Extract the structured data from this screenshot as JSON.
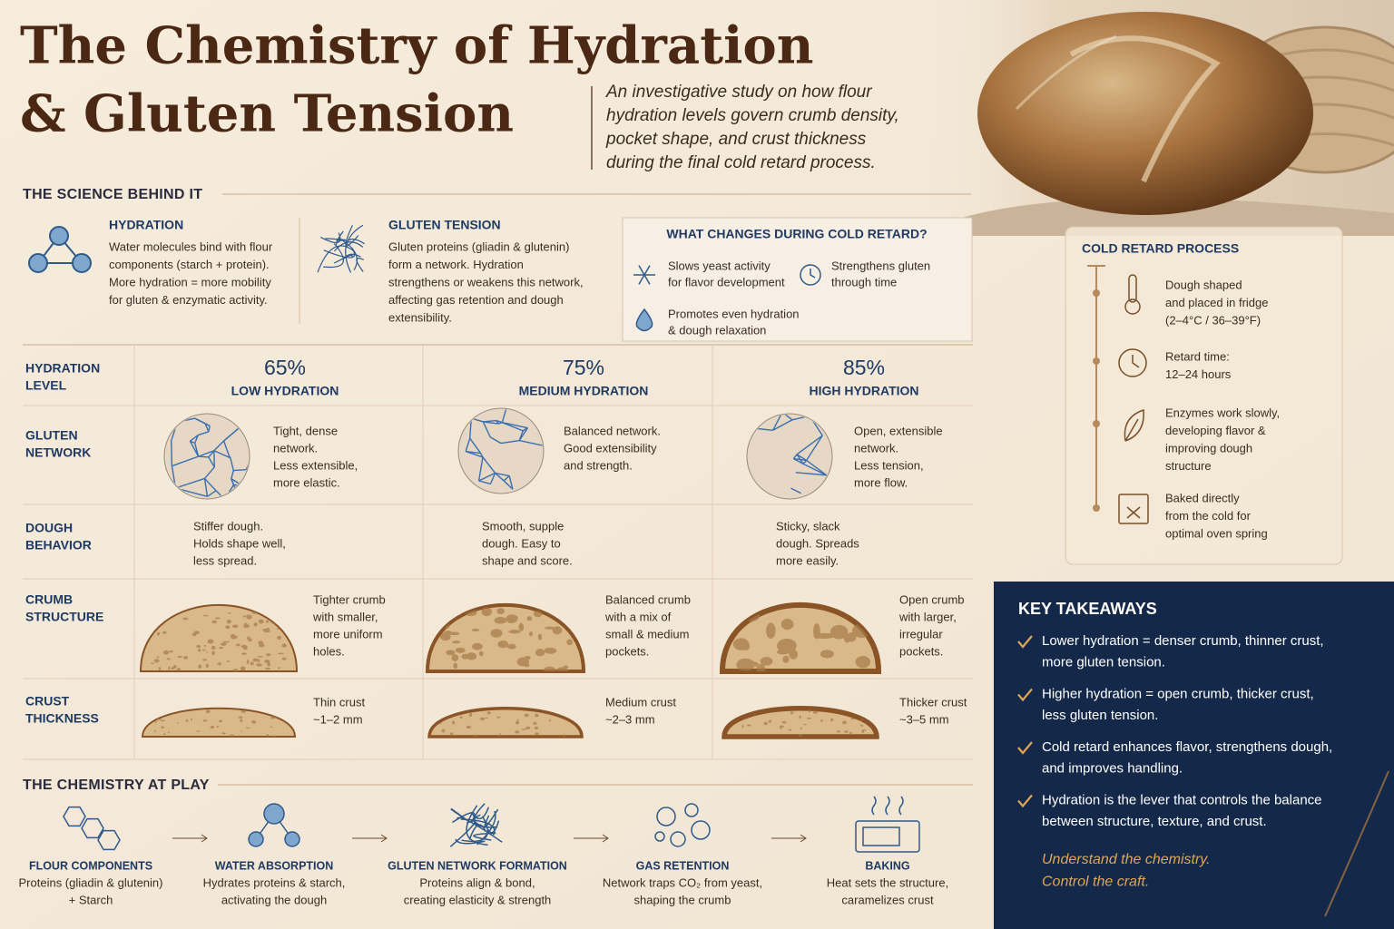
{
  "header": {
    "title": [
      "The Chemistry of Hydration",
      "& Gluten Tension"
    ],
    "subtitle": [
      "An investigative study on how flour",
      "hydration levels govern crumb density,",
      "pocket shape, and crust thickness",
      "during the final cold retard process."
    ]
  },
  "science": {
    "heading": "THE SCIENCE BEHIND IT",
    "hydration": {
      "title": "HYDRATION",
      "text": [
        "Water molecules bind with flour",
        "components (starch + protein).",
        "More hydration = more mobility",
        "for gluten & enzymatic activity."
      ]
    },
    "gluten": {
      "title": "GLUTEN TENSION",
      "text": [
        "Gluten proteins (gliadin & glutenin)",
        "form a network. Hydration",
        "strengthens or weakens this network,",
        "affecting gas retention and dough",
        "extensibility."
      ]
    },
    "cold_retard_changes": {
      "title": "WHAT CHANGES DURING COLD RETARD?",
      "items": [
        [
          "Slows yeast activity",
          "for flavor development"
        ],
        [
          "Strengthens gluten",
          "through time"
        ],
        [
          "Promotes even hydration",
          "& dough relaxation"
        ]
      ]
    }
  },
  "table": {
    "corner": [
      "HYDRATION",
      "LEVEL"
    ],
    "columns": [
      {
        "percent": "65%",
        "label": "LOW HYDRATION"
      },
      {
        "percent": "75%",
        "label": "MEDIUM HYDRATION"
      },
      {
        "percent": "85%",
        "label": "HIGH HYDRATION"
      }
    ],
    "rows": [
      {
        "label": [
          "GLUTEN",
          "NETWORK"
        ],
        "cells": [
          [
            "Tight, dense",
            "network.",
            "Less extensible,",
            "more elastic."
          ],
          [
            "Balanced network.",
            "Good extensibility",
            "and strength."
          ],
          [
            "Open, extensible",
            "network.",
            "Less tension,",
            "more flow."
          ]
        ]
      },
      {
        "label": [
          "DOUGH",
          "BEHAVIOR"
        ],
        "cells": [
          [
            "Stiffer dough.",
            "Holds shape well,",
            "less spread."
          ],
          [
            "Smooth, supple",
            "dough. Easy to",
            "shape and score."
          ],
          [
            "Sticky, slack",
            "dough. Spreads",
            "more easily."
          ]
        ]
      },
      {
        "label": [
          "CRUMB",
          "STRUCTURE"
        ],
        "cells": [
          [
            "Tighter crumb",
            "with smaller,",
            "more uniform",
            "holes."
          ],
          [
            "Balanced crumb",
            "with a mix of",
            "small & medium",
            "pockets."
          ],
          [
            "Open crumb",
            "with larger,",
            "irregular",
            "pockets."
          ]
        ]
      },
      {
        "label": [
          "CRUST",
          "THICKNESS"
        ],
        "cells": [
          [
            "Thin crust",
            "~1–2 mm"
          ],
          [
            "Medium crust",
            "~2–3 mm"
          ],
          [
            "Thicker crust",
            "~3–5 mm"
          ]
        ]
      }
    ]
  },
  "chemistry": {
    "heading": "THE CHEMISTRY AT PLAY",
    "steps": [
      {
        "title": "FLOUR COMPONENTS",
        "text": [
          "Proteins (gliadin & glutenin)",
          "+ Starch"
        ]
      },
      {
        "title": "WATER ABSORPTION",
        "text": [
          "Hydrates proteins & starch,",
          "activating the dough"
        ]
      },
      {
        "title": "GLUTEN NETWORK FORMATION",
        "text": [
          "Proteins align & bond,",
          "creating elasticity & strength"
        ]
      },
      {
        "title": "GAS RETENTION",
        "text": [
          "Network traps CO₂ from yeast,",
          "shaping the crumb"
        ]
      },
      {
        "title": "BAKING",
        "text": [
          "Heat sets the structure,",
          "caramelizes crust"
        ]
      }
    ]
  },
  "cold_retard_process": {
    "title": "COLD RETARD PROCESS",
    "steps": [
      [
        "Dough shaped",
        "and placed in fridge",
        "(2–4°C / 36–39°F)"
      ],
      [
        "Retard time:",
        "12–24 hours"
      ],
      [
        "Enzymes work slowly,",
        "developing flavor &",
        "improving dough",
        "structure"
      ],
      [
        "Baked directly",
        "from the cold for",
        "optimal oven spring"
      ]
    ]
  },
  "key_takeaways": {
    "title": "KEY TAKEAWAYS",
    "items": [
      [
        "Lower hydration = denser crumb, thinner crust,",
        "more gluten tension."
      ],
      [
        "Higher hydration = open crumb, thicker crust,",
        "less gluten tension."
      ],
      [
        "Cold retard enhances flavor, strengthens dough,",
        "and improves handling."
      ],
      [
        "Hydration is the lever that controls the balance",
        "between structure, texture, and crust."
      ]
    ],
    "closing": [
      "Understand the chemistry.",
      "Control the craft."
    ]
  }
}
